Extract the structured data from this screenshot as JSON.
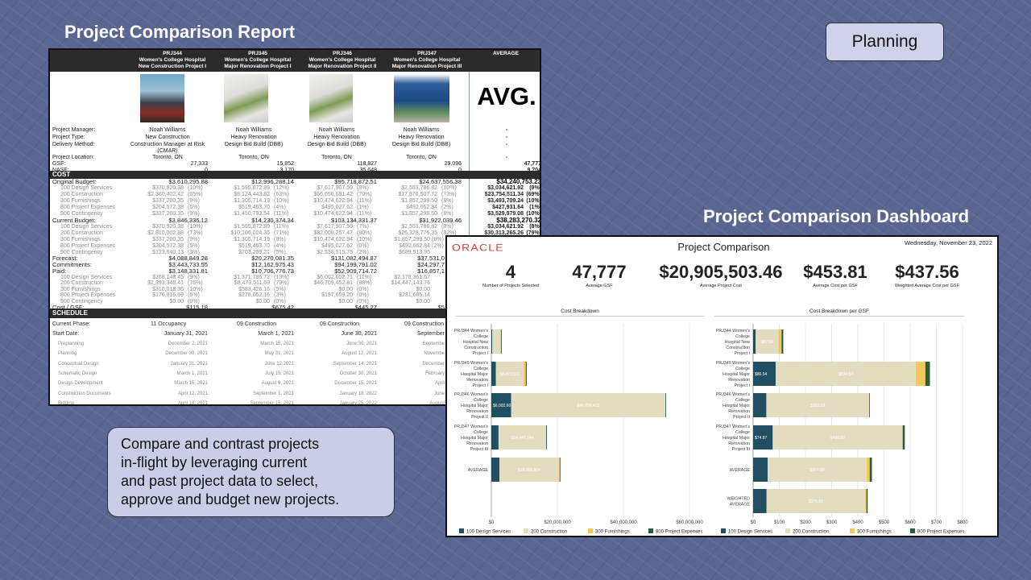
{
  "slide": {
    "report_title": "Project Comparison Report",
    "dashboard_title": "Project Comparison Dashboard",
    "planning_label": "Planning",
    "blurb_lines": [
      "Compare and contrast projects",
      "in-flight by leveraging current",
      "and past project data to select,",
      "approve and budget new projects."
    ]
  },
  "report": {
    "columns": [
      {
        "code": "PRJ344",
        "client": "Women's College Hospital",
        "project": "New Construction Project I"
      },
      {
        "code": "PRJ345",
        "client": "Women's College Hospital",
        "project": "Major Renovation Project I"
      },
      {
        "code": "PRJ346",
        "client": "Women's College Hospital",
        "project": "Major Renovation Project II"
      },
      {
        "code": "PRJ347",
        "client": "Women's College Hospital",
        "project": "Major Renovation Project III"
      }
    ],
    "average_header": "AVERAGE",
    "average_image_text": "AVG.",
    "rows": [
      {
        "kind": "info",
        "label": "Project Manager:",
        "values": [
          "Noah Williams",
          "Noah Williams",
          "Noah Williams",
          "Noah Williams"
        ],
        "avg": "-"
      },
      {
        "kind": "info",
        "label": "Project Type:",
        "values": [
          "New Construction",
          "Heavy Renovation",
          "Heavy Renovation",
          "Heavy Renovation"
        ],
        "avg": "-"
      },
      {
        "kind": "info",
        "label": "Delivery Method:",
        "values": [
          "Construction Manager at Risk (CMAR)",
          "Design Bid Build (DBB)",
          "Design Bid Build (DBB)",
          "Design Bid Build (DBB)"
        ],
        "avg": "-"
      },
      {
        "kind": "info",
        "label": "Project Location:",
        "values": [
          "Toronto, ON",
          "Toronto, ON",
          "Toronto, ON",
          "Toronto, ON"
        ],
        "avg": "-"
      },
      {
        "kind": "num",
        "label": "GSF:",
        "values": [
          "27,333",
          "15,852",
          "118,827",
          "29,096"
        ],
        "avg": "47,777"
      },
      {
        "kind": "num",
        "label": "NASF:",
        "values": [
          "0",
          "3,170",
          "35,648",
          "0"
        ],
        "avg": "9,704"
      },
      {
        "kind": "section",
        "label": "COST"
      },
      {
        "kind": "total",
        "label": "Original Budget:",
        "values": [
          "$3,610,295.88",
          "$12,996,288.14",
          "$95,718,872.51",
          "$24,637,556.38"
        ],
        "avg": "$34,240,753.23"
      },
      {
        "kind": "item",
        "label": "100 Design Services",
        "values": [
          [
            "$370,920.38",
            "(10%)"
          ],
          [
            "$1,595,872.89",
            "(12%)"
          ],
          [
            "$7,617,907.59",
            "(8%)"
          ],
          [
            "$2,553,786.82",
            "(10%)"
          ]
        ],
        "avg": [
          "$3,034,621.92",
          "(9%)"
        ]
      },
      {
        "kind": "item",
        "label": "200 Construction",
        "values": [
          [
            "$2,360,402.42",
            "(65%)"
          ],
          [
            "$8,124,443.82",
            "(63%)"
          ],
          [
            "$66,656,691.42",
            "(70%)"
          ],
          [
            "$17,876,507.72",
            "(73%)"
          ]
        ],
        "avg": [
          "$23,754,511.34",
          "(69%)"
        ]
      },
      {
        "kind": "item",
        "label": "300 Furnishings",
        "values": [
          [
            "$337,200.35",
            "(9%)"
          ],
          [
            "$1,305,714.19",
            "(10%)"
          ],
          [
            "$10,474,622.94",
            "(11%)"
          ],
          [
            "$1,857,299.50",
            "(8%)"
          ]
        ],
        "avg": [
          "$3,493,709.24",
          "(10%)"
        ]
      },
      {
        "kind": "item",
        "label": "800 Project Expenses",
        "values": [
          [
            "$204,572.38",
            "(6%)"
          ],
          [
            "$519,463.70",
            "(4%)"
          ],
          [
            "$495,027.62",
            "(1%)"
          ],
          [
            "$492,662.84",
            "(2%)"
          ]
        ],
        "avg": [
          "$427,931.64",
          "(1%)"
        ]
      },
      {
        "kind": "item",
        "label": "900 Contingency",
        "values": [
          [
            "$337,200.35",
            "(9%)"
          ],
          [
            "$1,450,793.54",
            "(11%)"
          ],
          [
            "$10,474,622.94",
            "(11%)"
          ],
          [
            "$1,857,299.50",
            "(8%)"
          ]
        ],
        "avg": [
          "$3,529,979.08",
          "(10%)"
        ]
      },
      {
        "kind": "total",
        "label": "Current Budget:",
        "values": [
          "$3,846,336.12",
          "$14,230,374.34",
          "$103,134,331.37",
          "$31,922,039.46"
        ],
        "avg": "$38,283,270.32"
      },
      {
        "kind": "item",
        "label": "100 Design Services",
        "values": [
          [
            "$370,920.38",
            "(10%)"
          ],
          [
            "$1,595,872.89",
            "(11%)"
          ],
          [
            "$7,617,907.59",
            "(7%)"
          ],
          [
            "$2,553,786.82",
            "(8%)"
          ]
        ],
        "avg": [
          "$3,034,621.92",
          "(8%)"
        ]
      },
      {
        "kind": "item",
        "label": "200 Construction",
        "values": [
          [
            "$2,810,002.88",
            "(73%)"
          ],
          [
            "$10,106,024.35",
            "(71%)"
          ],
          [
            "$82,008,257.47",
            "(80%)"
          ],
          [
            "$26,328,776.35",
            "(82%)"
          ]
        ],
        "avg": [
          "$30,313,265.26",
          "(79%)"
        ]
      },
      {
        "kind": "item",
        "label": "300 Furnishings",
        "values": [
          [
            "$337,200.35",
            "(9%)"
          ],
          [
            "$1,305,714.19",
            "(9%)"
          ],
          [
            "$10,474,622.94",
            "(10%)"
          ],
          [
            "$1,857,299.50",
            "(6%)"
          ]
        ]
      },
      {
        "kind": "item",
        "label": "800 Project Expenses",
        "values": [
          [
            "$204,572.38",
            "(5%)"
          ],
          [
            "$519,463.70",
            "(4%)"
          ],
          [
            "$495,027.62",
            "(0%)"
          ],
          [
            "$492,662.84",
            "(2%)"
          ]
        ]
      },
      {
        "kind": "item",
        "label": "900 Contingency",
        "values": [
          [
            "$123,640.13",
            "(3%)"
          ],
          [
            "$703,299.21",
            "(5%)"
          ],
          [
            "$2,538,515.75",
            "(2%)"
          ],
          [
            "$689,513.95",
            ""
          ]
        ]
      },
      {
        "kind": "total",
        "label": "Forecast:",
        "values": [
          "$4,088,849.28",
          "$20,270,081.35",
          "$131,082,494.87",
          "$37,531,0"
        ]
      },
      {
        "kind": "total",
        "label": "Commitments:",
        "values": [
          "$3,443,733.55",
          "$12,162,975.43",
          "$94,199,791.02",
          "$24,297,7"
        ]
      },
      {
        "kind": "total",
        "label": "Paid:",
        "values": [
          "$3,148,331.81",
          "$10,706,776.73",
          "$52,909,714.72",
          "$16,857,1"
        ]
      },
      {
        "kind": "item",
        "label": "100 Design Services",
        "values": [
          [
            "$268,148.45",
            "(9%)"
          ],
          [
            "$1,371,786.72",
            "(13%)"
          ],
          [
            "$6,002,602.71",
            "(11%)"
          ],
          [
            "$2,178,361.67",
            ""
          ]
        ]
      },
      {
        "kind": "item",
        "label": "200 Construction",
        "values": [
          [
            "$2,393,348.41",
            "(76%)"
          ],
          [
            "$8,473,511.69",
            "(79%)"
          ],
          [
            "$46,709,452.81",
            "(88%)"
          ],
          [
            "$14,447,143.76",
            ""
          ]
        ]
      },
      {
        "kind": "item",
        "label": "300 Furnishings",
        "values": [
          [
            "$310,018.36",
            "(10%)"
          ],
          [
            "$583,426.16",
            "(5%)"
          ],
          [
            "$0.00",
            "(0%)"
          ],
          [
            "$0.00",
            ""
          ]
        ]
      },
      {
        "kind": "item",
        "label": "800 Project Expenses",
        "values": [
          [
            "$176,816.59",
            "(6%)"
          ],
          [
            "$278,052.16",
            "(3%)"
          ],
          [
            "$197,659.20",
            "(0%)"
          ],
          [
            "$231,685.14",
            ""
          ]
        ]
      },
      {
        "kind": "item",
        "label": "900 Contingency",
        "values": [
          [
            "$0.00",
            "(0%)"
          ],
          [
            "$0.00",
            "(0%)"
          ],
          [
            "$0.00",
            "(0%)"
          ],
          [
            "$0.00",
            ""
          ]
        ]
      },
      {
        "kind": "total",
        "label": "Cost / GSF:",
        "values": [
          "$115.18",
          "$675.42",
          "$445.27",
          "$5"
        ]
      },
      {
        "kind": "section",
        "label": "SCHEDULE"
      },
      {
        "kind": "phase",
        "label": "Current Phase:",
        "values": [
          "11 Occupancy",
          "09 Construction",
          "09 Construction",
          "09 Construction"
        ]
      },
      {
        "kind": "date",
        "label": "Start Date:",
        "values": [
          "January 31, 2021",
          "March 1, 2021",
          "June 30, 2021",
          "September"
        ]
      },
      {
        "kind": "subdate",
        "label": "Preplanning",
        "values": [
          "December 2, 2021",
          "March 15, 2021",
          "June 30, 2021",
          "Septembe"
        ]
      },
      {
        "kind": "subdate",
        "label": "Planning",
        "values": [
          "December 30, 2021",
          "May 31, 2021",
          "August 12, 2021",
          "Novembe"
        ]
      },
      {
        "kind": "subdate",
        "label": "Conceptual Design",
        "values": [
          "January 31, 2021",
          "June 12,2021",
          "September 14, 2021",
          "December"
        ]
      },
      {
        "kind": "subdate",
        "label": "Schematic Design",
        "values": [
          "March 1, 2021",
          "July 15, 2021",
          "October 30, 2021",
          "February"
        ]
      },
      {
        "kind": "subdate",
        "label": "Design Development",
        "values": [
          "March 15, 2021",
          "August 9, 2021",
          "December 15, 2021",
          "April"
        ]
      },
      {
        "kind": "subdate",
        "label": "Construction Documents",
        "values": [
          "April 12, 2021",
          "September 1, 2021",
          "January 18, 2022",
          "June"
        ]
      },
      {
        "kind": "subdate",
        "label": "Bidding",
        "values": [
          "April 18, 2021",
          "September 15, 2021",
          "January 25, 2022",
          "August"
        ]
      }
    ]
  },
  "dashboard": {
    "logo": "ORACLE",
    "title": "Project Comparison",
    "date": "Wednesday, November 23, 2022",
    "kpis": [
      {
        "value": "4",
        "label": "Number of Projects Selected"
      },
      {
        "value": "47,777",
        "label": "Average GSF"
      },
      {
        "value": "$20,905,503.46",
        "label": "Average Project Cost"
      },
      {
        "value": "$453.81",
        "label": "Average Cost per GSF"
      },
      {
        "value": "$437.56",
        "label": "Weighted Average Cost per GSF"
      }
    ],
    "colors": {
      "100 Design Services": "#1f4f60",
      "200 Construction": "#e4dcc0",
      "300 Furnishings": "#f3c85a",
      "800 Project Expenses": "#2c5b3c"
    }
  },
  "chart_data": [
    {
      "type": "bar",
      "orientation": "horizontal",
      "stacked": true,
      "title": "Cost Breakdown",
      "categories": [
        "PRJ344 Women's College Hospital New Construction Project I",
        "PRJ345 Women's College Hospital Major Renovation Project I",
        "PRJ346 Women's College Hospital Major Renovation Project II",
        "PRJ347 Women's College Hospital Major Renovation Project III",
        "AVERAGE"
      ],
      "series": [
        {
          "name": "100 Design Services",
          "values": [
            268148,
            1371787,
            6002603,
            2178362,
            2455225
          ]
        },
        {
          "name": "200 Construction",
          "values": [
            2393348,
            8473512,
            46709453,
            14447144,
            18005864
          ]
        },
        {
          "name": "300 Furnishings",
          "values": [
            310018,
            583426,
            0,
            0,
            223361
          ]
        },
        {
          "name": "800 Project Expenses",
          "values": [
            176817,
            278052,
            197659,
            231685,
            221053
          ]
        }
      ],
      "xlim": [
        0,
        60000000
      ],
      "tick_labels": [
        "$0",
        "$20,000,000",
        "$40,000,000",
        "$60,000,000"
      ],
      "grid": true,
      "legend": "bottom"
    },
    {
      "type": "bar",
      "orientation": "horizontal",
      "stacked": true,
      "title": "Cost Breakdown per GSF",
      "categories": [
        "PRJ344 Women's College Hospital New Construction Project I",
        "PRJ345 Women's College Hospital Major Renovation Project I",
        "PRJ346 Women's College Hospital Major Renovation Project II",
        "PRJ347 Women's College Hospital Major Renovation Project III",
        "AVERAGE",
        "WEIGHTED AVERAGE"
      ],
      "series": [
        {
          "name": "100 Design Services",
          "values": [
            9.81,
            86.54,
            50.52,
            74.87,
            55.43,
            51.39
          ]
        },
        {
          "name": "200 Construction",
          "values": [
            87.56,
            534.54,
            393.09,
            496.53,
            377.93,
            376.87
          ]
        },
        {
          "name": "300 Furnishings",
          "values": [
            11.34,
            36.8,
            0,
            0,
            12.04,
            4.68
          ]
        },
        {
          "name": "800 Project Expenses",
          "values": [
            6.47,
            17.54,
            1.66,
            7.96,
            8.41,
            4.63
          ]
        }
      ],
      "xlim": [
        0,
        800
      ],
      "tick_labels": [
        "$0",
        "$100",
        "$200",
        "$300",
        "$400",
        "$500",
        "$600",
        "$700",
        "$800"
      ],
      "grid": true,
      "legend": "bottom"
    }
  ]
}
